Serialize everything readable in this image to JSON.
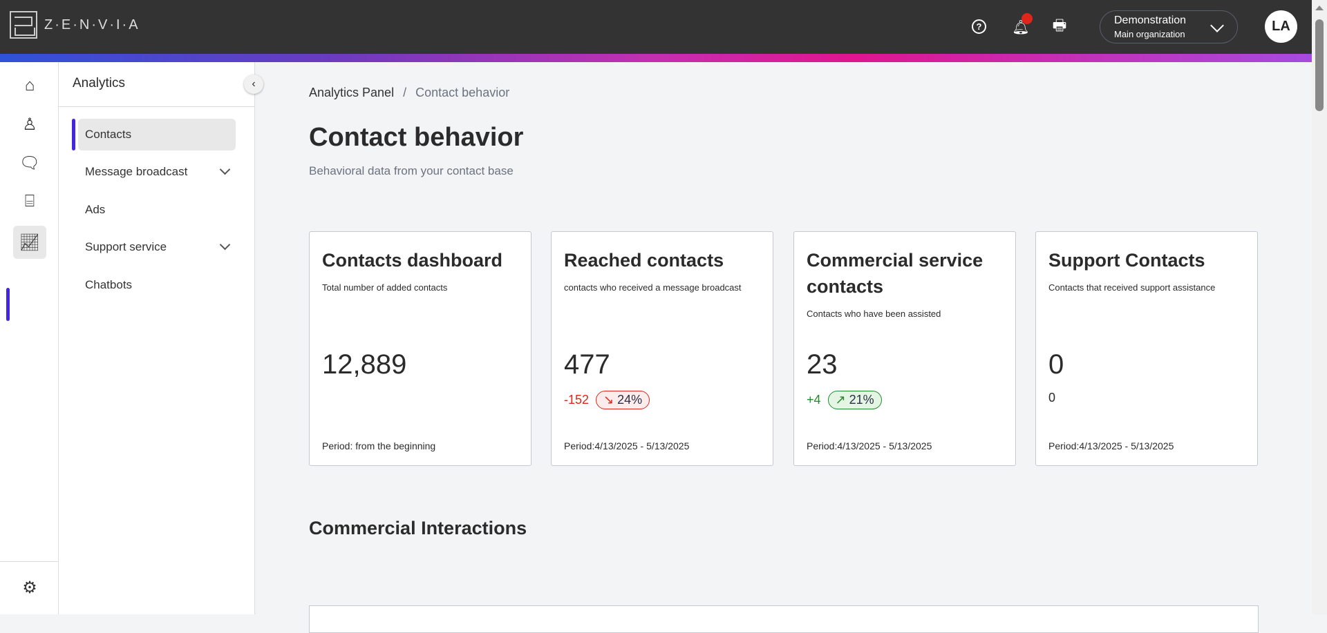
{
  "header": {
    "logo_text": "Z·E·N·V·I·A",
    "org_name": "Demonstration",
    "org_sub": "Main organization",
    "avatar": "LA",
    "help_glyph": "?"
  },
  "rail": {
    "items": [
      "home-icon",
      "contacts-icon",
      "chat-icon",
      "ticket-icon",
      "analytics-icon"
    ],
    "settings": "gear-icon"
  },
  "sidebar": {
    "title": "Analytics",
    "items": [
      {
        "label": "Contacts"
      },
      {
        "label": "Message broadcast"
      },
      {
        "label": "Ads"
      },
      {
        "label": "Support service"
      },
      {
        "label": "Chatbots"
      }
    ]
  },
  "breadcrumb": {
    "root": "Analytics Panel",
    "sep": "/",
    "current": "Contact behavior"
  },
  "page": {
    "title": "Contact behavior",
    "subtitle": "Behavioral data from your contact base"
  },
  "cards": [
    {
      "title": "Contacts dashboard",
      "desc": "Total number of added contacts",
      "value": "12,889",
      "period": "Period: from the beginning"
    },
    {
      "title": "Reached contacts",
      "desc": "contacts who received a message broadcast",
      "value": "477",
      "delta": "-152",
      "pct": "24%",
      "trend": "down",
      "period": "Period:4/13/2025 - 5/13/2025"
    },
    {
      "title": "Commercial service contacts",
      "desc": "Contacts who have been assisted",
      "value": "23",
      "delta": "+4",
      "pct": "21%",
      "trend": "up",
      "period": "Period:4/13/2025 - 5/13/2025"
    },
    {
      "title": "Support Contacts",
      "desc": "Contacts that received support assistance",
      "value": "0",
      "delta": "0",
      "period": "Period:4/13/2025 - 5/13/2025"
    }
  ],
  "section": {
    "title": "Commercial Interactions"
  },
  "colors": {
    "topbar": "#333333",
    "accent": "#4226e0",
    "negative": "#e0251b",
    "positive": "#1f8a2e"
  }
}
